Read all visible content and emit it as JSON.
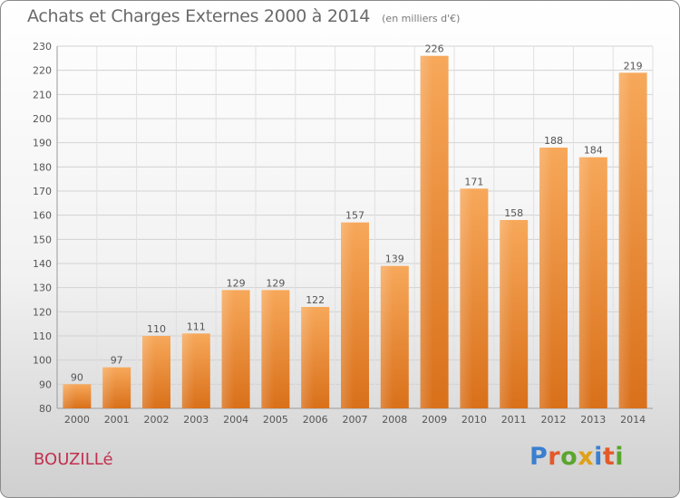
{
  "header": {
    "title": "Achats et Charges Externes 2000 à 2014",
    "subtitle": "(en milliers d'€)"
  },
  "footer": {
    "commune": "BOUZILLé",
    "logo": "Proxiti"
  },
  "chart_data": {
    "type": "bar",
    "title": "Achats et Charges Externes 2000 à 2014",
    "subtitle": "(en milliers d'€)",
    "categories": [
      "2000",
      "2001",
      "2002",
      "2003",
      "2004",
      "2005",
      "2006",
      "2007",
      "2008",
      "2009",
      "2010",
      "2011",
      "2012",
      "2013",
      "2014"
    ],
    "values": [
      90,
      97,
      110,
      111,
      129,
      129,
      122,
      157,
      139,
      226,
      171,
      158,
      188,
      184,
      219
    ],
    "ylim": [
      80,
      230
    ],
    "yticks": [
      80,
      90,
      100,
      110,
      120,
      130,
      140,
      150,
      160,
      170,
      180,
      190,
      200,
      210,
      220,
      230
    ],
    "grid": true,
    "bar_color": "#f29a3e",
    "legend": "none"
  }
}
